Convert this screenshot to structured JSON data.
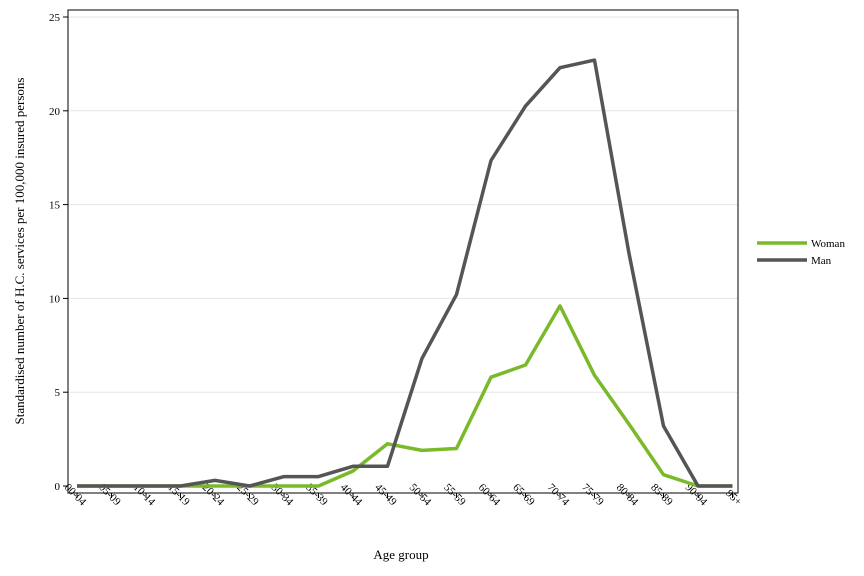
{
  "chart_data": {
    "type": "line",
    "categories": [
      "00-04",
      "05-09",
      "10-14",
      "15-19",
      "20-24",
      "25-29",
      "30-34",
      "35-39",
      "40-44",
      "45-49",
      "50-54",
      "55-59",
      "60-64",
      "65-69",
      "70-74",
      "75-79",
      "80-84",
      "85-89",
      "90-94",
      "95+"
    ],
    "series": [
      {
        "name": "Woman",
        "color": "#7ab929",
        "values": [
          0,
          0,
          0,
          0,
          0,
          0,
          0,
          0,
          0.8,
          2.25,
          1.9,
          2.0,
          5.8,
          6.45,
          9.6,
          5.9,
          3.3,
          0.6,
          0,
          0
        ]
      },
      {
        "name": "Man",
        "color": "#555555",
        "values": [
          0,
          0,
          0,
          0,
          0.3,
          0,
          0.5,
          0.5,
          1.05,
          1.05,
          6.8,
          10.2,
          17.35,
          20.25,
          22.3,
          22.7,
          12.4,
          3.2,
          0,
          0
        ]
      }
    ],
    "xlabel": "Age group",
    "ylabel": "Standardised number of H.C. services per 100,000 insured persons",
    "ylim": [
      0,
      25
    ],
    "yticks": [
      "0",
      "5",
      "10",
      "15",
      "20",
      "25"
    ],
    "grid": true,
    "legend_position": "right"
  }
}
